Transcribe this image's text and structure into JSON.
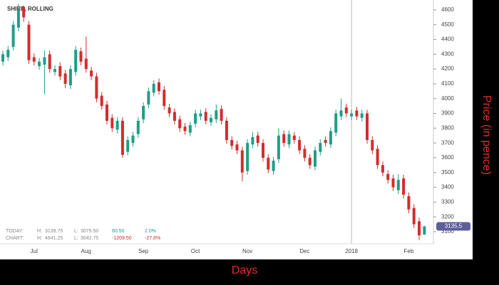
{
  "chart_data": {
    "type": "candlestick",
    "title": "SHIRE, ROLLING",
    "x_label": "Days",
    "y_label": "Price (in pence)",
    "up_color": "#1f9e86",
    "down_color": "#cf2e2e",
    "categories": [
      null,
      null,
      null,
      null,
      null,
      null,
      "Jul",
      null,
      null,
      null,
      null,
      null,
      null,
      null,
      null,
      null,
      "Aug",
      null,
      null,
      null,
      null,
      null,
      null,
      null,
      null,
      null,
      null,
      "Sep",
      null,
      null,
      null,
      null,
      null,
      null,
      null,
      null,
      null,
      "Oct",
      null,
      null,
      null,
      null,
      null,
      null,
      null,
      null,
      null,
      "Nov",
      null,
      null,
      null,
      null,
      null,
      null,
      null,
      null,
      null,
      null,
      "Dec",
      null,
      null,
      null,
      null,
      null,
      null,
      null,
      null,
      "2018",
      null,
      null,
      null,
      null,
      null,
      null,
      null,
      null,
      null,
      null,
      "Feb",
      null,
      null,
      null
    ],
    "open": [
      4250,
      4280,
      4350,
      4480,
      4620,
      4500,
      4280,
      4220,
      4230,
      4300,
      4180,
      4220,
      4170,
      4090,
      4180,
      4320,
      4270,
      4190,
      4150,
      4020,
      3960,
      3870,
      3790,
      3850,
      3640,
      3700,
      3760,
      3860,
      3960,
      4040,
      4110,
      4060,
      3940,
      3910,
      3860,
      3810,
      3770,
      3830,
      3880,
      3910,
      3840,
      3860,
      3930,
      3850,
      3720,
      3690,
      3650,
      3510,
      3690,
      3750,
      3700,
      3600,
      3510,
      3590,
      3760,
      3690,
      3750,
      3720,
      3660,
      3600,
      3540,
      3640,
      3720,
      3690,
      3770,
      3880,
      3940,
      3880,
      3920,
      3870,
      3900,
      3720,
      3660,
      3550,
      3490,
      3460,
      3380,
      3460,
      3340,
      3260,
      3170,
      3080
    ],
    "high": [
      4325,
      4355,
      4525,
      4641.25,
      4630,
      4525,
      4305,
      4275,
      4325,
      4325,
      4225,
      4245,
      4195,
      4225,
      4355,
      4345,
      4420,
      4215,
      4175,
      4045,
      3985,
      3895,
      3875,
      3875,
      3745,
      3775,
      3875,
      3975,
      4075,
      4125,
      4135,
      4085,
      3965,
      3935,
      3885,
      3835,
      3845,
      3925,
      3925,
      3935,
      3895,
      3960,
      3955,
      3875,
      3745,
      3715,
      3675,
      3725,
      3775,
      3775,
      3725,
      3625,
      3605,
      3800,
      3785,
      3785,
      3775,
      3745,
      3685,
      3625,
      3675,
      3725,
      3745,
      3805,
      3925,
      4000,
      3965,
      3925,
      3945,
      3925,
      3925,
      3745,
      3685,
      3575,
      3515,
      3485,
      3490,
      3485,
      3365,
      3285,
      3195,
      3139.75
    ],
    "low": [
      4225,
      4255,
      4325,
      4455,
      4520,
      4235,
      4225,
      4195,
      4030,
      4175,
      4155,
      4125,
      4070,
      4065,
      4155,
      4225,
      4175,
      4125,
      3975,
      3925,
      3825,
      3775,
      3765,
      3600,
      3615,
      3675,
      3735,
      3835,
      3935,
      4015,
      4025,
      3925,
      3875,
      3825,
      3775,
      3755,
      3745,
      3805,
      3855,
      3825,
      3815,
      3835,
      3825,
      3695,
      3655,
      3625,
      3440,
      3485,
      3665,
      3675,
      3575,
      3495,
      3485,
      3565,
      3675,
      3665,
      3695,
      3625,
      3575,
      3525,
      3515,
      3615,
      3675,
      3665,
      3745,
      3855,
      3875,
      3855,
      3855,
      3845,
      3695,
      3625,
      3525,
      3475,
      3425,
      3375,
      3355,
      3325,
      3225,
      3125,
      3042.75,
      3079.5
    ],
    "close": [
      4300,
      4330,
      4500,
      4600,
      4550,
      4260,
      4250,
      4250,
      4280,
      4200,
      4200,
      4150,
      4100,
      4200,
      4330,
      4250,
      4200,
      4150,
      4000,
      3950,
      3850,
      3800,
      3850,
      3620,
      3720,
      3750,
      3850,
      3950,
      4050,
      4100,
      4050,
      3950,
      3900,
      3850,
      3800,
      3780,
      3820,
      3900,
      3900,
      3850,
      3870,
      3920,
      3850,
      3720,
      3680,
      3650,
      3500,
      3700,
      3740,
      3700,
      3600,
      3520,
      3580,
      3750,
      3700,
      3760,
      3720,
      3650,
      3600,
      3550,
      3650,
      3700,
      3700,
      3780,
      3900,
      3920,
      3900,
      3900,
      3880,
      3900,
      3720,
      3650,
      3550,
      3500,
      3450,
      3400,
      3450,
      3350,
      3250,
      3150,
      3075,
      3135.5
    ],
    "ylim": [
      3018,
      4667
    ],
    "yticks": [
      3100,
      3200,
      3300,
      3400,
      3500,
      3600,
      3700,
      3800,
      3900,
      4000,
      4100,
      4200,
      4300,
      4400,
      4500,
      4600
    ],
    "year_marker": 67,
    "info": {
      "today": {
        "label": "TODAY:",
        "h_label": "H:",
        "h": "3139.75",
        "l_label": "L:",
        "l": "3079.50",
        "change": "60.50",
        "pct": "2.0%"
      },
      "chart": {
        "label": "CHART:",
        "h_label": "H:",
        "h": "4641.25",
        "l_label": "L:",
        "l": "3042.75",
        "change": "-1209.50",
        "pct": "-27.8%"
      }
    }
  }
}
